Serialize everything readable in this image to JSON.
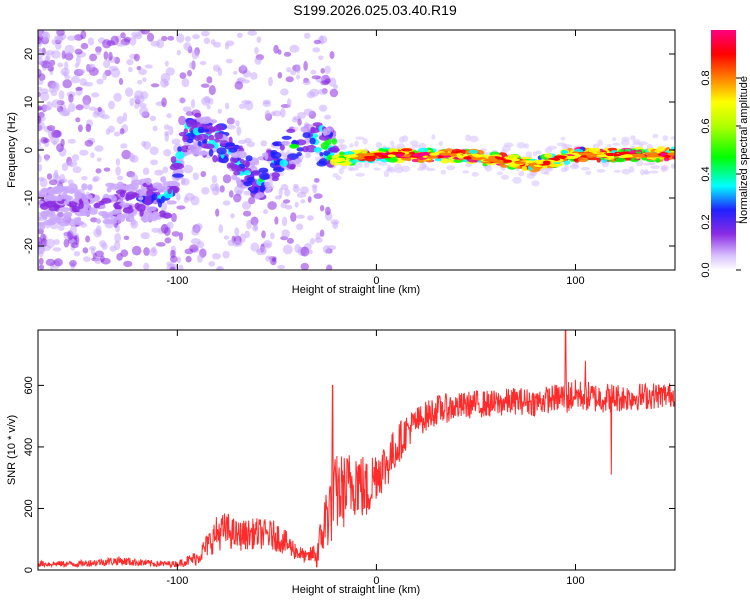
{
  "title": "S199.2026.025.03.40.R19",
  "colors": {
    "snr_line": "#ff2a2a",
    "axis": "#000000",
    "background": "#ffffff",
    "colormap": [
      "#ffffff",
      "#c9a7ff",
      "#8a2be2",
      "#2020ff",
      "#00ffff",
      "#00ff00",
      "#ffff00",
      "#ff8000",
      "#ff0000",
      "#ff00aa"
    ]
  },
  "chart_data": [
    {
      "type": "heatmap",
      "name": "spectrogram",
      "xlabel": "Height of straight line (km)",
      "ylabel": "Frequency (Hz)",
      "xlim": [
        -170,
        150
      ],
      "ylim": [
        -25,
        25
      ],
      "xticks": [
        -100,
        0,
        100
      ],
      "xtick_labels": [
        "-100",
        "0",
        "100"
      ],
      "yticks": [
        -20,
        -10,
        0,
        10,
        20
      ],
      "ytick_labels": [
        "-20",
        "-10",
        "0",
        "10",
        "20"
      ],
      "colorbar": {
        "label": "Normalized spectral amplitude",
        "range": [
          0,
          1
        ],
        "ticks": [
          0.0,
          0.2,
          0.4,
          0.6,
          0.8
        ],
        "tick_labels": [
          "0.0",
          "0.2",
          "0.4",
          "0.6",
          "0.8"
        ]
      },
      "ridge_track": {
        "x": [
          -170,
          -130,
          -105,
          -95,
          -80,
          -60,
          -45,
          -30,
          -20,
          0,
          20,
          50,
          80,
          100,
          120,
          150
        ],
        "freq": [
          -12,
          -11,
          -10,
          4,
          2,
          -7,
          0,
          2,
          -2,
          -1,
          -1,
          -1.5,
          -3,
          -1,
          -1,
          -1
        ],
        "amplitude": [
          0.15,
          0.2,
          0.3,
          0.35,
          0.35,
          0.35,
          0.4,
          0.4,
          0.6,
          0.9,
          0.95,
          0.9,
          0.85,
          0.9,
          0.9,
          0.95
        ]
      }
    },
    {
      "type": "line",
      "name": "snr",
      "xlabel": "Height of straight line (km)",
      "ylabel": "SNR (10 * v/v)",
      "xlim": [
        -170,
        150
      ],
      "ylim": [
        0,
        780
      ],
      "xticks": [
        -100,
        0,
        100
      ],
      "xtick_labels": [
        "-100",
        "0",
        "100"
      ],
      "yticks": [
        0,
        200,
        400,
        600
      ],
      "ytick_labels": [
        "0",
        "200",
        "400",
        "600"
      ],
      "series": [
        {
          "name": "SNR",
          "x": [
            -170,
            -150,
            -130,
            -110,
            -100,
            -90,
            -85,
            -80,
            -75,
            -70,
            -60,
            -50,
            -40,
            -35,
            -30,
            -27,
            -25,
            -22,
            -20,
            -15,
            -10,
            -5,
            0,
            5,
            10,
            15,
            20,
            25,
            30,
            40,
            50,
            60,
            70,
            80,
            90,
            95,
            100,
            110,
            118,
            125,
            135,
            150
          ],
          "mean": [
            20,
            20,
            30,
            20,
            20,
            40,
            80,
            120,
            130,
            110,
            120,
            110,
            60,
            40,
            60,
            120,
            180,
            220,
            250,
            260,
            300,
            250,
            320,
            340,
            400,
            450,
            480,
            500,
            520,
            530,
            540,
            540,
            550,
            545,
            560,
            560,
            570,
            560,
            560,
            560,
            565,
            570
          ],
          "spread": [
            10,
            10,
            15,
            10,
            10,
            25,
            40,
            60,
            60,
            50,
            50,
            50,
            30,
            20,
            40,
            80,
            120,
            130,
            130,
            120,
            120,
            110,
            90,
            80,
            70,
            60,
            50,
            50,
            50,
            45,
            45,
            45,
            45,
            45,
            45,
            60,
            50,
            50,
            50,
            45,
            45,
            40
          ],
          "spikes": [
            [
              -22,
              600
            ],
            [
              95,
              780
            ],
            [
              -30,
              10
            ],
            [
              118,
              310
            ],
            [
              105,
              680
            ],
            [
              -5,
              180
            ]
          ]
        }
      ]
    }
  ]
}
